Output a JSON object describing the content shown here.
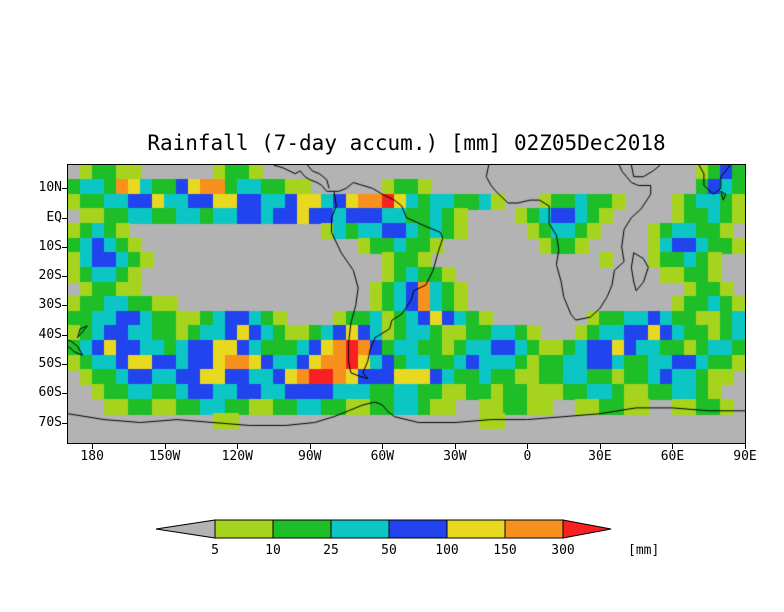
{
  "chart_data": {
    "type": "heatmap",
    "title": "Rainfall (7-day accum.) [mm] 02Z05Dec2018",
    "projection": "lat-lon",
    "lon_range": [
      -190,
      90
    ],
    "lat_range": [
      -77,
      18
    ],
    "x_ticks": [
      {
        "lon": -180,
        "label": "180"
      },
      {
        "lon": -150,
        "label": "150W"
      },
      {
        "lon": -120,
        "label": "120W"
      },
      {
        "lon": -90,
        "label": "90W"
      },
      {
        "lon": -60,
        "label": "60W"
      },
      {
        "lon": -30,
        "label": "30W"
      },
      {
        "lon": 0,
        "label": "0"
      },
      {
        "lon": 30,
        "label": "30E"
      },
      {
        "lon": 60,
        "label": "60E"
      },
      {
        "lon": 90,
        "label": "90E"
      }
    ],
    "y_ticks": [
      {
        "lat": 10,
        "label": "10N"
      },
      {
        "lat": 0,
        "label": "EQ"
      },
      {
        "lat": -10,
        "label": "10S"
      },
      {
        "lat": -20,
        "label": "20S"
      },
      {
        "lat": -30,
        "label": "30S"
      },
      {
        "lat": -40,
        "label": "40S"
      },
      {
        "lat": -50,
        "label": "50S"
      },
      {
        "lat": -60,
        "label": "60S"
      },
      {
        "lat": -70,
        "label": "70S"
      }
    ],
    "levels_mm": [
      5,
      10,
      25,
      50,
      100,
      150,
      300
    ],
    "colorbar": {
      "unit": "[mm]",
      "tick_labels": [
        "5",
        "10",
        "25",
        "50",
        "100",
        "150",
        "300"
      ],
      "below_color": "#b3b3b3",
      "above_color": "#f82020",
      "box_colors": [
        "#a6d41e",
        "#1ebe28",
        "#0cc6c6",
        "#2244ee",
        "#e8d820",
        "#f8901e"
      ]
    },
    "palette": {
      "0": "#b3b3b3",
      "1": "#a6d41e",
      "2": "#1ebe28",
      "3": "#0cc6c6",
      "4": "#2244ee",
      "5": "#e8d820",
      "6": "#f8901e",
      "7": "#f82020"
    },
    "background_color": "#b3b3b3",
    "coastline_color": "#000000",
    "grid": {
      "lon0": -190,
      "lat0": 18,
      "dlon": 5,
      "dlat": 5,
      "rows": [
        "01221100000012210000000000000000000000000000000000001242",
        "23326532245662332211000000122100000000000000000000002432",
        "12233445334455443345534566753233223100012232210000123321",
        "01122332233233443445443444332232100001234432100000122321",
        "12321000000000000000013233443232100000123321000012332210",
        "23432100000000000000000012232210000000012210000013443221",
        "13443210000000000000000000122100000000000000100012232100",
        "12332100000000000000000000123221000000000000000001122100",
        "01221100000000000000000001234632100000000000000000012210",
        "12233221100000000000000001234632100000000000000000122321",
        "22334432211234432100001223123454321000000001223343221123",
        "12344332212334543211234543123321122332100012334454322123",
        "23454433234455432223456764233221233443211234454332212332",
        "12334554434456654334566753423322343332122334432233443221",
        "01223443344554433456776544455543223221122332212234332110",
        "00122332234433443344443332233221122122111223321122332100",
        "00011221122332211223322112233211001122110011221100112210",
        "00000000000011000000000000000000001100000000000000000000",
        "00000000000000000000000000000000000000000000000000000000"
      ]
    },
    "coastlines": [
      [
        [
          -80,
          9
        ],
        [
          -79,
          4
        ],
        [
          -81,
          0
        ],
        [
          -81,
          -5
        ],
        [
          -77,
          -12
        ],
        [
          -72,
          -18
        ],
        [
          -70,
          -24
        ],
        [
          -71,
          -30
        ],
        [
          -73,
          -36
        ],
        [
          -74,
          -43
        ],
        [
          -74,
          -49
        ],
        [
          -73,
          -53
        ],
        [
          -70,
          -54
        ],
        [
          -66,
          -55
        ],
        [
          -68,
          -53
        ],
        [
          -66,
          -49
        ],
        [
          -65,
          -45
        ],
        [
          -63,
          -41
        ],
        [
          -57,
          -38
        ],
        [
          -56,
          -35
        ],
        [
          -52,
          -33
        ],
        [
          -48,
          -28
        ],
        [
          -47,
          -25
        ],
        [
          -42,
          -23
        ],
        [
          -39,
          -18
        ],
        [
          -37,
          -12
        ],
        [
          -35,
          -7
        ],
        [
          -36,
          -5
        ],
        [
          -42,
          -3
        ],
        [
          -50,
          0
        ],
        [
          -52,
          4
        ],
        [
          -55,
          6
        ],
        [
          -60,
          8
        ],
        [
          -64,
          10
        ],
        [
          -68,
          11
        ],
        [
          -72,
          12
        ],
        [
          -75,
          10
        ],
        [
          -78,
          9
        ],
        [
          -80,
          9
        ]
      ],
      [
        [
          -105,
          18
        ],
        [
          -101,
          17
        ],
        [
          -96,
          15
        ],
        [
          -94,
          16
        ],
        [
          -92,
          14
        ],
        [
          -90,
          13
        ],
        [
          -87,
          12
        ],
        [
          -85,
          11
        ],
        [
          -83,
          9
        ],
        [
          -80,
          9
        ]
      ],
      [
        [
          -91,
          18
        ],
        [
          -89,
          16
        ],
        [
          -86,
          15
        ],
        [
          -83,
          13
        ],
        [
          -82,
          10
        ]
      ],
      [
        [
          -16,
          18
        ],
        [
          -17,
          14
        ],
        [
          -15,
          11
        ],
        [
          -13,
          9
        ],
        [
          -8,
          5
        ],
        [
          -4,
          5
        ],
        [
          1,
          6
        ],
        [
          5,
          6
        ],
        [
          9,
          4
        ],
        [
          9,
          1
        ],
        [
          9,
          -2
        ],
        [
          12,
          -6
        ],
        [
          13,
          -11
        ],
        [
          12,
          -16
        ],
        [
          14,
          -22
        ],
        [
          15,
          -27
        ],
        [
          18,
          -33
        ],
        [
          20,
          -35
        ],
        [
          26,
          -34
        ],
        [
          30,
          -31
        ],
        [
          33,
          -27
        ],
        [
          35,
          -23
        ],
        [
          36,
          -18
        ],
        [
          40,
          -15
        ],
        [
          39,
          -10
        ],
        [
          40,
          -4
        ],
        [
          43,
          0
        ],
        [
          47,
          3
        ],
        [
          51,
          8
        ],
        [
          51,
          11
        ],
        [
          46,
          11
        ],
        [
          43,
          12
        ],
        [
          41,
          14
        ],
        [
          39,
          16
        ],
        [
          38,
          18
        ]
      ],
      [
        [
          43,
          18
        ],
        [
          44,
          14
        ],
        [
          48,
          14
        ],
        [
          52,
          16
        ],
        [
          55,
          18
        ]
      ],
      [
        [
          44,
          -12
        ],
        [
          48,
          -14
        ],
        [
          50,
          -17
        ],
        [
          48,
          -22
        ],
        [
          45,
          -25
        ],
        [
          44,
          -22
        ],
        [
          43,
          -17
        ],
        [
          44,
          -12
        ]
      ],
      [
        [
          71,
          18
        ],
        [
          73,
          15
        ],
        [
          73,
          11
        ],
        [
          77,
          8
        ],
        [
          80,
          10
        ],
        [
          80,
          14
        ],
        [
          82,
          16
        ],
        [
          84,
          18
        ]
      ],
      [
        [
          80,
          9
        ],
        [
          81,
          6
        ],
        [
          82,
          8
        ],
        [
          80,
          9
        ]
      ],
      [
        [
          -190,
          -44
        ],
        [
          -187,
          -46
        ],
        [
          -184,
          -47
        ],
        [
          -186,
          -44
        ],
        [
          -189,
          -42
        ],
        [
          -190,
          -42
        ]
      ],
      [
        [
          -186,
          -41
        ],
        [
          -184,
          -39
        ],
        [
          -182,
          -37
        ],
        [
          -185,
          -38
        ],
        [
          -186,
          -41
        ]
      ],
      [
        [
          -190,
          -67
        ],
        [
          -175,
          -69
        ],
        [
          -160,
          -70
        ],
        [
          -145,
          -69
        ],
        [
          -130,
          -70
        ],
        [
          -115,
          -71
        ],
        [
          -100,
          -71
        ],
        [
          -88,
          -70
        ],
        [
          -80,
          -68
        ],
        [
          -74,
          -66
        ],
        [
          -68,
          -64
        ],
        [
          -63,
          -63
        ],
        [
          -60,
          -64
        ],
        [
          -58,
          -66
        ],
        [
          -55,
          -68
        ],
        [
          -45,
          -70
        ],
        [
          -30,
          -70
        ],
        [
          -15,
          -69
        ],
        [
          0,
          -69
        ],
        [
          15,
          -68
        ],
        [
          30,
          -67
        ],
        [
          45,
          -65
        ],
        [
          60,
          -65
        ],
        [
          75,
          -66
        ],
        [
          90,
          -66
        ]
      ]
    ]
  }
}
